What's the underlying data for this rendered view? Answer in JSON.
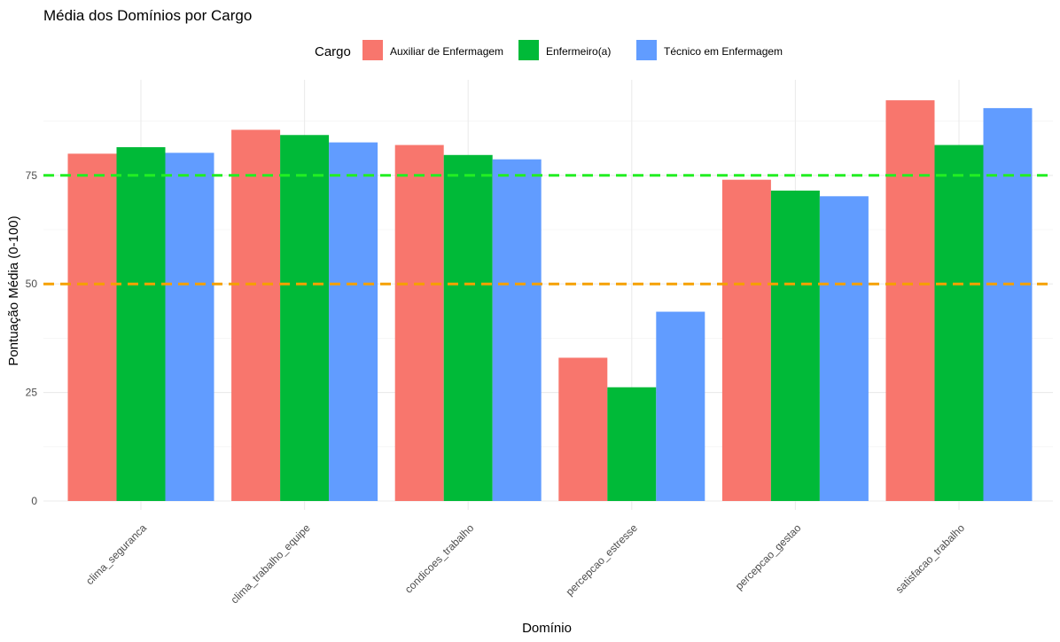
{
  "chart_data": {
    "type": "bar",
    "title": "Média dos Domínios por Cargo",
    "xlabel": "Domínio",
    "ylabel": "Pontuação Média (0-100)",
    "ylim": [
      0,
      100
    ],
    "yticks": [
      0,
      25,
      50,
      75
    ],
    "grid": true,
    "legend": {
      "title": "Cargo",
      "placement": "top"
    },
    "categories": [
      "clima_seguranca",
      "clima_trabalho_equipe",
      "condicoes_trabalho",
      "percepcao_estresse",
      "percepcao_gestao",
      "satisfacao_trabalho"
    ],
    "series": [
      {
        "name": "Auxiliar de Enfermagem",
        "color": "#F8766D",
        "values": [
          80.0,
          85.5,
          82.0,
          33.0,
          74.0,
          92.3
        ]
      },
      {
        "name": "Enfermeiro(a)",
        "color": "#00BA38",
        "values": [
          81.5,
          84.3,
          79.7,
          26.2,
          71.5,
          82.0
        ]
      },
      {
        "name": "Técnico em Enfermagem",
        "color": "#619CFF",
        "values": [
          80.2,
          82.6,
          78.7,
          43.6,
          70.2,
          90.5
        ]
      }
    ],
    "reference_lines": [
      {
        "value": 75,
        "color": "#22EE22",
        "style": "dashed"
      },
      {
        "value": 50,
        "color": "#F5A000",
        "style": "dashed"
      }
    ]
  }
}
